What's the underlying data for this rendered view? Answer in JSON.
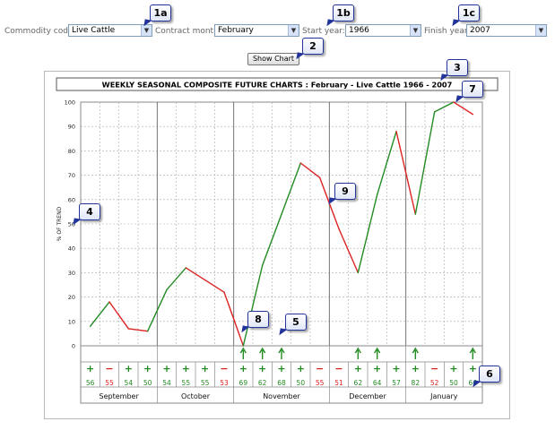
{
  "controls": {
    "commodity_label": "Commodity code:",
    "commodity_value": "Live Cattle",
    "month_label": "Contract month:",
    "month_value": "February",
    "start_label": "Start year:",
    "start_value": "1966",
    "finish_label": "Finish year:",
    "finish_value": "2007",
    "show_chart": "Show Chart"
  },
  "callouts": [
    "1a",
    "1b",
    "1c",
    "2",
    "3",
    "4",
    "5",
    "6",
    "7",
    "8",
    "9"
  ],
  "colors": {
    "up": "#228b22",
    "down": "#dd2222",
    "grid": "#aaaaaa",
    "callout_border": "#223399"
  },
  "chart_data": {
    "type": "line",
    "title": "WEEKLY SEASONAL COMPOSITE FUTURE CHARTS : February - Live Cattle 1966 - 2007",
    "ylabel": "% OF TREND",
    "ylim": [
      0,
      100
    ],
    "yticks": [
      0,
      10,
      20,
      30,
      40,
      50,
      60,
      70,
      80,
      90,
      100
    ],
    "x": [
      1,
      2,
      3,
      4,
      5,
      6,
      7,
      8,
      9,
      10,
      11,
      12,
      13,
      14,
      15,
      16,
      17,
      18,
      19,
      20
    ],
    "values": [
      8,
      18,
      7,
      6,
      23,
      32,
      27,
      22,
      0,
      33,
      54,
      75,
      69,
      48,
      30,
      62,
      88,
      54,
      96,
      100
    ],
    "last_value": 95,
    "months": [
      {
        "name": "September",
        "weeks": 4
      },
      {
        "name": "October",
        "weeks": 4
      },
      {
        "name": "November",
        "weeks": 5
      },
      {
        "name": "December",
        "weeks": 4
      },
      {
        "name": "January",
        "weeks": 4
      }
    ],
    "weekly_signs": [
      "+",
      "-",
      "+",
      "+",
      "+",
      "+",
      "+",
      "-",
      "+",
      "+",
      "+",
      "+",
      "-",
      "-",
      "+",
      "+",
      "+",
      "+",
      "-",
      "+",
      "+"
    ],
    "weekly_percents": [
      "56",
      "55",
      "54",
      "50",
      "54",
      "55",
      "55",
      "53",
      "69",
      "62",
      "68",
      "50",
      "55",
      "51",
      "62",
      "64",
      "57",
      "82",
      "52",
      "50",
      "66"
    ],
    "arrows": [
      8,
      9,
      10,
      14,
      15,
      17,
      20
    ]
  }
}
